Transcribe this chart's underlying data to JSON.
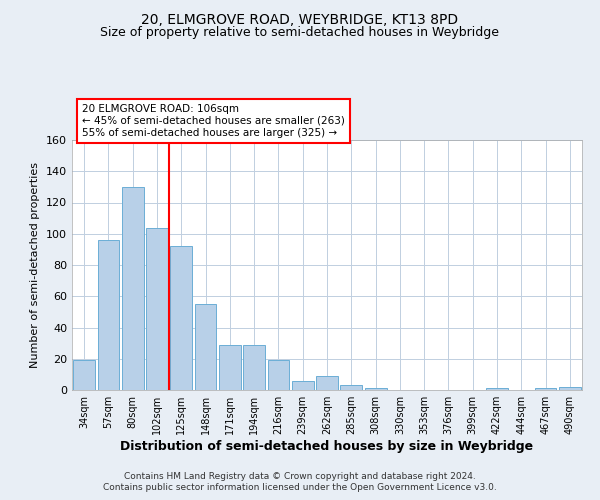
{
  "title": "20, ELMGROVE ROAD, WEYBRIDGE, KT13 8PD",
  "subtitle": "Size of property relative to semi-detached houses in Weybridge",
  "xlabel": "Distribution of semi-detached houses by size in Weybridge",
  "ylabel": "Number of semi-detached properties",
  "bar_labels": [
    "34sqm",
    "57sqm",
    "80sqm",
    "102sqm",
    "125sqm",
    "148sqm",
    "171sqm",
    "194sqm",
    "216sqm",
    "239sqm",
    "262sqm",
    "285sqm",
    "308sqm",
    "330sqm",
    "353sqm",
    "376sqm",
    "399sqm",
    "422sqm",
    "444sqm",
    "467sqm",
    "490sqm"
  ],
  "bar_values": [
    19,
    96,
    130,
    104,
    92,
    55,
    29,
    29,
    19,
    6,
    9,
    3,
    1,
    0,
    0,
    0,
    0,
    1,
    0,
    1,
    2
  ],
  "bar_color": "#b8d0e8",
  "bar_edge_color": "#6baed6",
  "vline_pos": 3.5,
  "vline_color": "red",
  "annotation_title": "20 ELMGROVE ROAD: 106sqm",
  "annotation_line1": "← 45% of semi-detached houses are smaller (263)",
  "annotation_line2": "55% of semi-detached houses are larger (325) →",
  "annotation_box_color": "red",
  "ylim": [
    0,
    160
  ],
  "yticks": [
    0,
    20,
    40,
    60,
    80,
    100,
    120,
    140,
    160
  ],
  "footer1": "Contains HM Land Registry data © Crown copyright and database right 2024.",
  "footer2": "Contains public sector information licensed under the Open Government Licence v3.0.",
  "bg_color": "#e8eef5",
  "plot_bg_color": "#ffffff",
  "grid_color": "#c0cfe0",
  "title_fontsize": 10,
  "subtitle_fontsize": 9,
  "xlabel_fontsize": 9,
  "ylabel_fontsize": 8
}
